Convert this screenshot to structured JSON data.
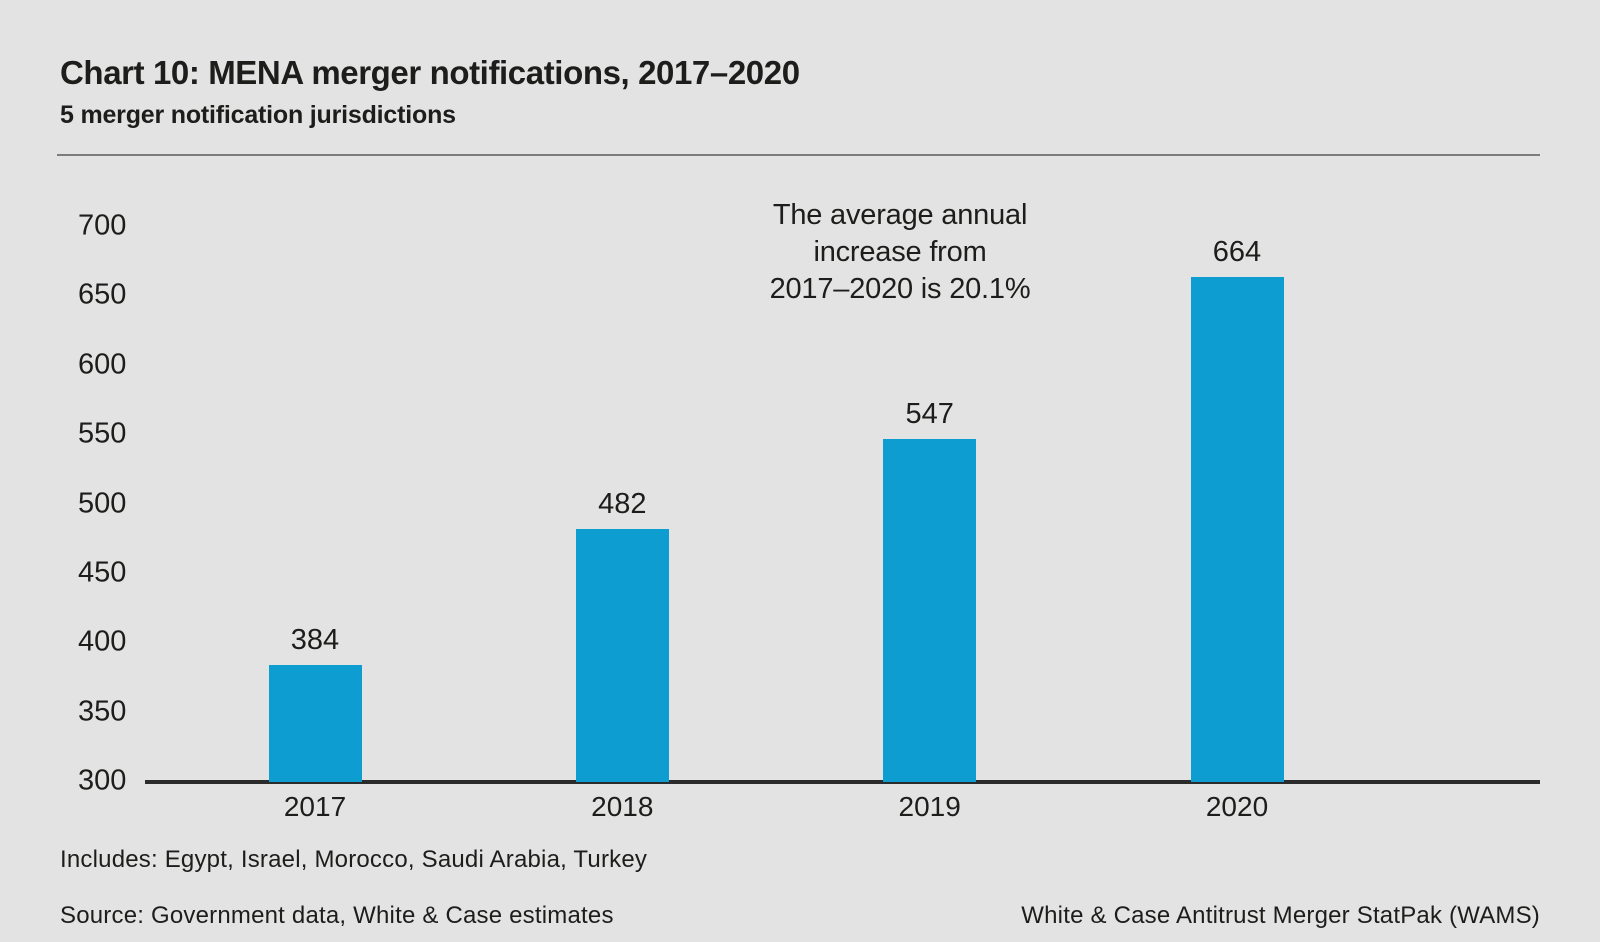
{
  "page": {
    "background_color": "#e3e3e3",
    "text_color": "#1d1d1b"
  },
  "header": {
    "title": "Chart 10: MENA merger notifications, 2017–2020",
    "subtitle": "5 merger notification jurisdictions"
  },
  "annotation": {
    "lines": [
      "The average annual",
      "increase from",
      "2017–2020 is 20.1%"
    ]
  },
  "footer": {
    "includes": "Includes: Egypt, Israel, Morocco, Saudi Arabia, Turkey",
    "source": "Source: Government data, White & Case estimates",
    "attribution": "White & Case Antitrust Merger StatPak (WAMS)"
  },
  "chart_data": {
    "type": "bar",
    "title": "Chart 10: MENA merger notifications, 2017–2020",
    "subtitle": "5 merger notification jurisdictions",
    "categories": [
      "2017",
      "2018",
      "2019",
      "2020"
    ],
    "values": [
      384,
      482,
      547,
      664
    ],
    "data_labels": [
      "384",
      "482",
      "547",
      "664"
    ],
    "xlabel": "",
    "ylabel": "",
    "ylim": [
      300,
      700
    ],
    "ytick_step": 50,
    "yticks": [
      700,
      650,
      600,
      550,
      500,
      450,
      400,
      350,
      300
    ],
    "grid": false,
    "legend": false,
    "bar_color": "#0e9dd0",
    "axis_color": "#2b2b2b",
    "annotation_text": "The average annual increase from 2017–2020 is 20.1%"
  }
}
